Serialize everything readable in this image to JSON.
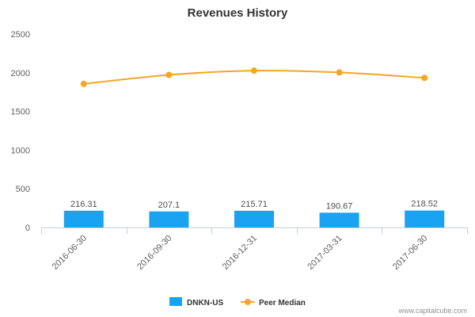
{
  "chart_data": {
    "type": "bar+line",
    "title": "Revenues History",
    "categories": [
      "2016-06-30",
      "2016-09-30",
      "2016-12-31",
      "2017-03-31",
      "2017-06-30"
    ],
    "series": [
      {
        "name": "DNKN-US",
        "type": "bar",
        "color": "#1aa3f0",
        "values": [
          216.31,
          207.1,
          215.71,
          190.67,
          218.52
        ],
        "labels": [
          "216.31",
          "207.1",
          "215.71",
          "190.67",
          "218.52"
        ]
      },
      {
        "name": "Peer Median",
        "type": "line",
        "color": "#f5a623",
        "values": [
          1856,
          1972,
          2027,
          2004,
          1934
        ]
      }
    ],
    "ylim": [
      0,
      2500
    ],
    "yticks": [
      0,
      500,
      1000,
      1500,
      2000,
      2500
    ],
    "ytick_labels": [
      "0",
      "500",
      "1000",
      "1500",
      "2000",
      "2500"
    ],
    "xlabel": "",
    "ylabel": "",
    "grid": false,
    "legend_position": "bottom-center"
  },
  "credit": "www.capitalcube.com"
}
